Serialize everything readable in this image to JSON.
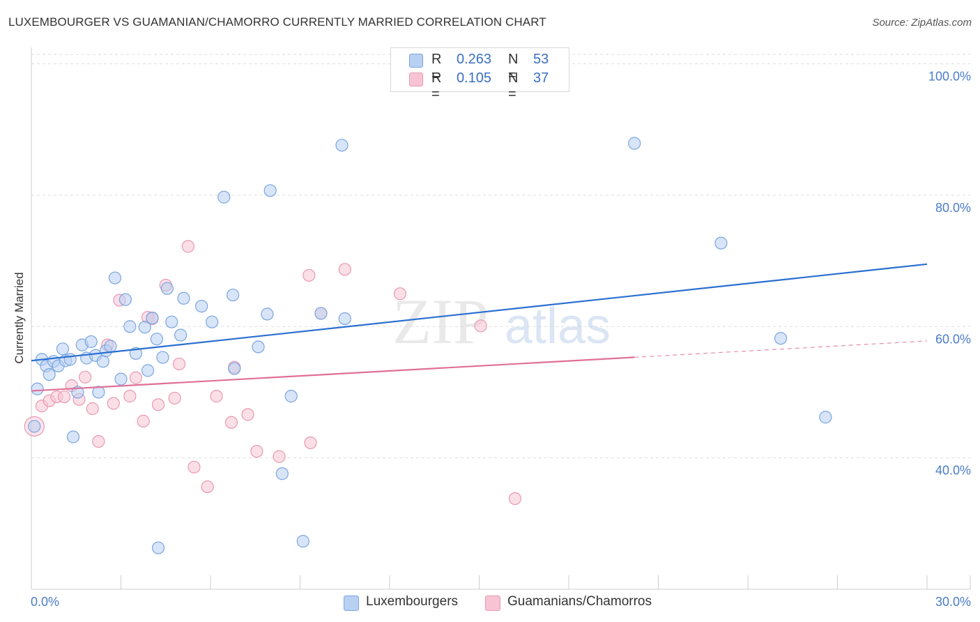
{
  "header": {
    "title": "LUXEMBOURGER VS GUAMANIAN/CHAMORRO CURRENTLY MARRIED CORRELATION CHART",
    "source": "Source: ZipAtlas.com"
  },
  "legend": {
    "rows": [
      {
        "r_label": "R =",
        "r_value": "0.263",
        "n_label": "N =",
        "n_value": "53"
      },
      {
        "r_label": "R =",
        "r_value": "0.105",
        "n_label": "N =",
        "n_value": "37"
      }
    ]
  },
  "bottom_legend": {
    "items": [
      "Luxembourgers",
      "Guamanians/Chamorros"
    ]
  },
  "watermark": {
    "zip": "ZIP",
    "atlas": "atlas"
  },
  "colors": {
    "blue_fill": "#b8d0f2",
    "blue_stroke": "#7aa5df",
    "blue_line": "#2a6fd1",
    "pink_fill": "#f8c4d4",
    "pink_stroke": "#e898b2",
    "pink_line": "#e06f98",
    "axis_label": "#4a7cc9",
    "grid": "#dddddd"
  },
  "chart_data": {
    "type": "scatter",
    "title": "LUXEMBOURGER VS GUAMANIAN/CHAMORRO CURRENTLY MARRIED CORRELATION CHART",
    "xlabel": "",
    "ylabel": "Currently Married",
    "xlim": [
      0,
      30
    ],
    "ylim": [
      20,
      102.5
    ],
    "x_tick_labels": [
      "0.0%",
      "30.0%"
    ],
    "y_ticks": [
      40,
      60,
      80,
      100
    ],
    "y_tick_labels": [
      "40.0%",
      "60.0%",
      "80.0%",
      "100.0%"
    ],
    "grid": true,
    "legend_position": "top-center",
    "series": [
      {
        "name": "Luxembourgers",
        "r": 0.263,
        "n": 53,
        "trend": {
          "x": [
            0,
            30
          ],
          "y": [
            54.8,
            69.5
          ],
          "dashed_from": null
        },
        "points": [
          [
            0.2,
            50.5
          ],
          [
            0.35,
            55.0
          ],
          [
            0.5,
            54.0
          ],
          [
            0.6,
            52.7
          ],
          [
            0.75,
            54.7
          ],
          [
            0.9,
            54.0
          ],
          [
            1.05,
            56.6
          ],
          [
            1.15,
            54.8
          ],
          [
            1.3,
            55.0
          ],
          [
            1.4,
            43.2
          ],
          [
            1.55,
            50.0
          ],
          [
            1.7,
            57.2
          ],
          [
            1.85,
            55.2
          ],
          [
            2.0,
            57.7
          ],
          [
            2.15,
            55.6
          ],
          [
            2.25,
            50.0
          ],
          [
            2.4,
            54.7
          ],
          [
            2.5,
            56.3
          ],
          [
            2.65,
            57.0
          ],
          [
            2.8,
            67.4
          ],
          [
            3.0,
            52.0
          ],
          [
            3.15,
            64.1
          ],
          [
            3.3,
            60.0
          ],
          [
            3.5,
            55.9
          ],
          [
            3.8,
            59.9
          ],
          [
            3.9,
            53.3
          ],
          [
            4.05,
            61.3
          ],
          [
            4.2,
            58.1
          ],
          [
            4.4,
            55.3
          ],
          [
            4.55,
            65.8
          ],
          [
            4.7,
            60.7
          ],
          [
            5.0,
            58.7
          ],
          [
            5.1,
            64.3
          ],
          [
            5.7,
            63.1
          ],
          [
            6.05,
            60.7
          ],
          [
            6.45,
            79.7
          ],
          [
            6.75,
            64.8
          ],
          [
            6.8,
            53.6
          ],
          [
            7.6,
            56.9
          ],
          [
            7.9,
            61.9
          ],
          [
            8.0,
            80.7
          ],
          [
            8.4,
            37.6
          ],
          [
            8.7,
            49.4
          ],
          [
            9.1,
            27.3
          ],
          [
            9.7,
            62.0
          ],
          [
            10.4,
            87.6
          ],
          [
            10.5,
            61.2
          ],
          [
            4.25,
            26.3
          ],
          [
            20.2,
            87.9
          ],
          [
            23.1,
            72.7
          ],
          [
            25.1,
            58.2
          ],
          [
            26.6,
            46.2
          ],
          [
            0.1,
            44.8
          ]
        ]
      },
      {
        "name": "Guamanians/Chamorros",
        "r": 0.105,
        "n": 37,
        "trend": {
          "x": [
            0,
            30
          ],
          "y": [
            50.2,
            57.8
          ],
          "dashed_from": 20.2
        },
        "points": [
          [
            0.35,
            47.9
          ],
          [
            0.6,
            48.7
          ],
          [
            0.85,
            49.3
          ],
          [
            1.1,
            49.3
          ],
          [
            1.35,
            51.0
          ],
          [
            1.6,
            48.9
          ],
          [
            1.8,
            52.3
          ],
          [
            2.05,
            47.5
          ],
          [
            2.25,
            42.5
          ],
          [
            2.55,
            57.2
          ],
          [
            2.75,
            48.3
          ],
          [
            2.95,
            64.0
          ],
          [
            3.3,
            49.4
          ],
          [
            3.5,
            52.2
          ],
          [
            3.75,
            45.6
          ],
          [
            3.9,
            61.4
          ],
          [
            4.05,
            61.2
          ],
          [
            4.25,
            48.1
          ],
          [
            4.5,
            66.3
          ],
          [
            4.8,
            49.1
          ],
          [
            4.95,
            54.3
          ],
          [
            5.25,
            72.2
          ],
          [
            5.45,
            38.6
          ],
          [
            5.9,
            35.6
          ],
          [
            6.2,
            49.4
          ],
          [
            6.7,
            45.4
          ],
          [
            6.8,
            53.8
          ],
          [
            7.25,
            46.6
          ],
          [
            7.55,
            41.0
          ],
          [
            8.3,
            40.2
          ],
          [
            9.3,
            67.8
          ],
          [
            9.35,
            42.3
          ],
          [
            9.7,
            62.0
          ],
          [
            10.5,
            68.7
          ],
          [
            12.35,
            65.0
          ],
          [
            15.05,
            60.1
          ],
          [
            16.2,
            33.8
          ]
        ]
      }
    ]
  }
}
